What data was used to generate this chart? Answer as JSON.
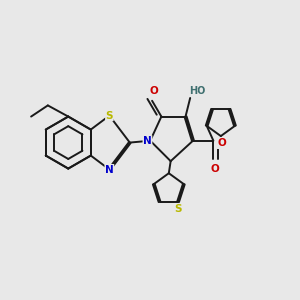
{
  "bg_color": "#e8e8e8",
  "bond_color": "#1a1a1a",
  "atom_colors": {
    "N": "#0000cc",
    "O": "#cc0000",
    "S": "#b8b800",
    "H": "#407070"
  },
  "font_size": 7.0,
  "line_width": 1.4
}
